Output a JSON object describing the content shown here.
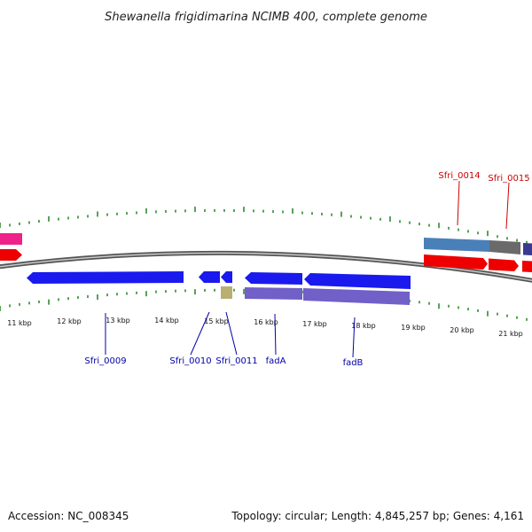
{
  "title": "Shewanella frigidimarina NCIMB 400, complete genome",
  "footer": {
    "accession": "Accession: NC_008345",
    "topology": "Topology: circular; Length: 4,845,257 bp; Genes: 4,161"
  },
  "colors": {
    "backbone": "#7f7f7f",
    "tick": "#2e8b2e",
    "cds_red": "#ee0000",
    "cds_blue": "#1a1aee",
    "cds_pink": "#ee2288",
    "cds_steel": "#4a80b8",
    "cds_gray": "#6a6a6a",
    "cds_purple": "#7060c8",
    "cds_khaki": "#b8b070",
    "cds_navy": "#3a3a90",
    "label_red": "#cc0000",
    "label_blue": "#0000aa"
  },
  "scale": {
    "labels": [
      "11 kbp",
      "12 kbp",
      "13 kbp",
      "14 kbp",
      "15 kbp",
      "16 kbp",
      "17 kbp",
      "18 kbp",
      "19 kbp",
      "20 kbp",
      "21 kbp"
    ]
  },
  "gene_labels": {
    "top": [
      "Sfri_0014",
      "Sfri_0015"
    ],
    "bottom": [
      "Sfri_0009",
      "Sfri_0010",
      "Sfri_0011",
      "fadA",
      "fadB"
    ]
  }
}
